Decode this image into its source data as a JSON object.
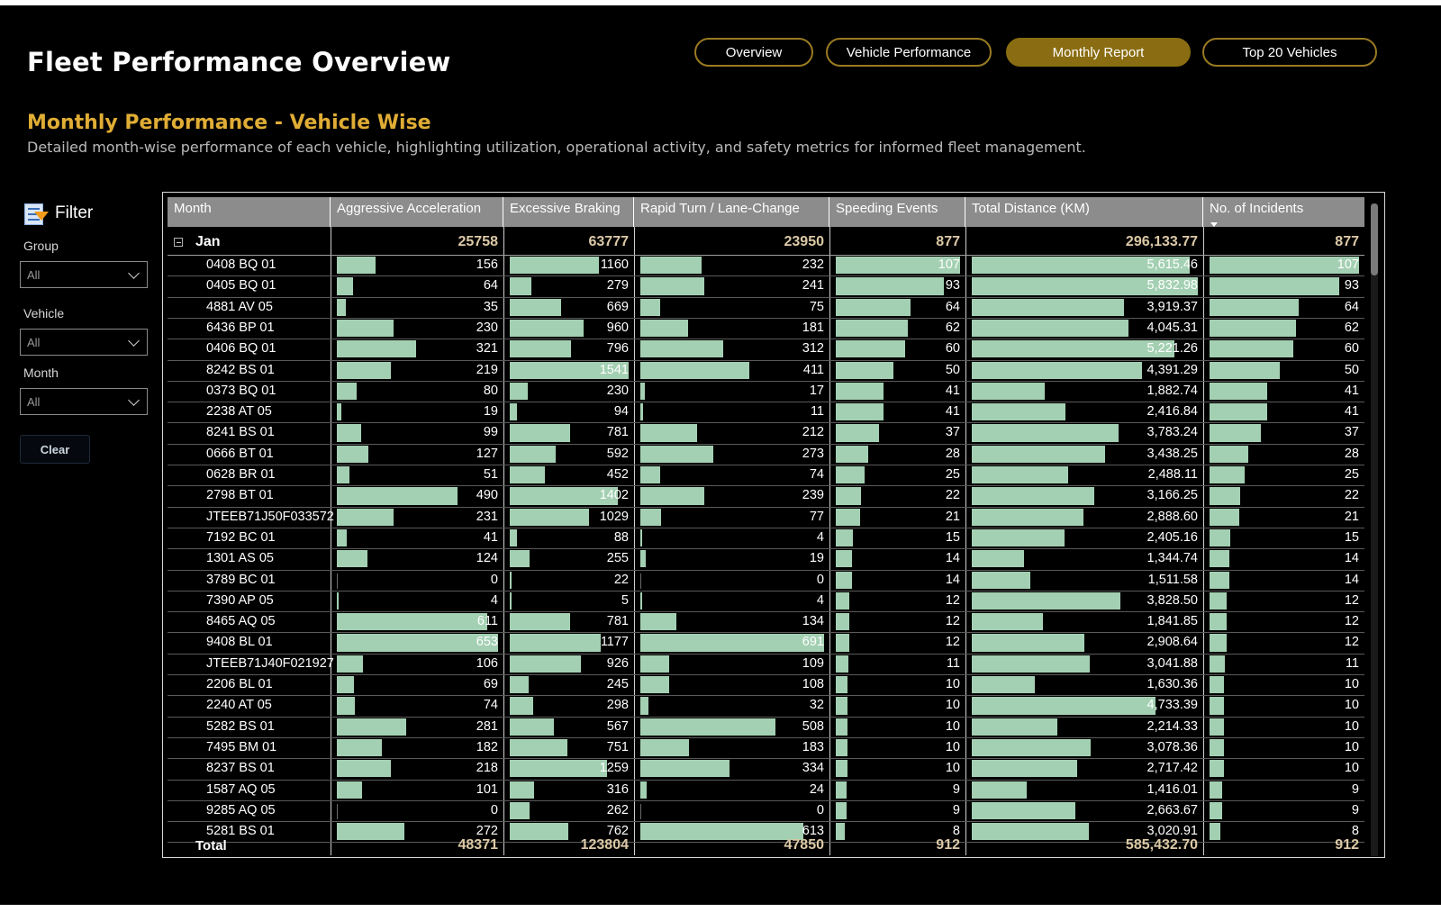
{
  "header": {
    "title": "Fleet Performance Overview",
    "nav": [
      {
        "label": "Overview",
        "active": false
      },
      {
        "label": "Vehicle Performance",
        "active": false
      },
      {
        "label": "Monthly Report",
        "active": true
      },
      {
        "label": "Top 20 Vehicles",
        "active": false
      }
    ]
  },
  "section": {
    "title": "Monthly Performance - Vehicle Wise",
    "subtitle": "Detailed month-wise performance of each vehicle, highlighting utilization, operational activity, and safety metrics for informed fleet management."
  },
  "filter": {
    "title": "Filter",
    "icon": "filter-icon",
    "fields": [
      {
        "label": "Group",
        "value": "All"
      },
      {
        "label": "Vehicle",
        "value": "All"
      },
      {
        "label": "Month",
        "value": "All"
      }
    ],
    "clear_label": "Clear"
  },
  "table": {
    "columns": [
      "Month",
      "Aggressive Acceleration",
      "Excessive Braking",
      "Rapid Turn / Lane-Change",
      "Speeding Events",
      "Total Distance (KM)",
      "No. of Incidents"
    ],
    "sorted_column": "No. of Incidents",
    "sort_direction": "descending",
    "bar_color": "#a3d0b2",
    "group": {
      "label": "Jan",
      "values": [
        "25758",
        "63777",
        "23950",
        "877",
        "296,133.77",
        "877"
      ]
    },
    "rows": [
      {
        "vehicle": "0408 BQ 01",
        "aa": 156,
        "eb": 1160,
        "rt": 232,
        "se": 107,
        "td": "5,615.46",
        "ni": 107
      },
      {
        "vehicle": "0405 BQ 01",
        "aa": 64,
        "eb": 279,
        "rt": 241,
        "se": 93,
        "td": "5,832.98",
        "ni": 93
      },
      {
        "vehicle": "4881 AV 05",
        "aa": 35,
        "eb": 669,
        "rt": 75,
        "se": 64,
        "td": "3,919.37",
        "ni": 64
      },
      {
        "vehicle": "6436 BP 01",
        "aa": 230,
        "eb": 960,
        "rt": 181,
        "se": 62,
        "td": "4,045.31",
        "ni": 62
      },
      {
        "vehicle": "0406 BQ 01",
        "aa": 321,
        "eb": 796,
        "rt": 312,
        "se": 60,
        "td": "5,221.26",
        "ni": 60
      },
      {
        "vehicle": "8242 BS 01",
        "aa": 219,
        "eb": 1541,
        "rt": 411,
        "se": 50,
        "td": "4,391.29",
        "ni": 50
      },
      {
        "vehicle": "0373 BQ 01",
        "aa": 80,
        "eb": 230,
        "rt": 17,
        "se": 41,
        "td": "1,882.74",
        "ni": 41
      },
      {
        "vehicle": "2238 AT 05",
        "aa": 19,
        "eb": 94,
        "rt": 11,
        "se": 41,
        "td": "2,416.84",
        "ni": 41
      },
      {
        "vehicle": "8241 BS 01",
        "aa": 99,
        "eb": 781,
        "rt": 212,
        "se": 37,
        "td": "3,783.24",
        "ni": 37
      },
      {
        "vehicle": "0666 BT 01",
        "aa": 127,
        "eb": 592,
        "rt": 273,
        "se": 28,
        "td": "3,438.25",
        "ni": 28
      },
      {
        "vehicle": "0628 BR 01",
        "aa": 51,
        "eb": 452,
        "rt": 74,
        "se": 25,
        "td": "2,488.11",
        "ni": 25
      },
      {
        "vehicle": "2798 BT 01",
        "aa": 490,
        "eb": 1402,
        "rt": 239,
        "se": 22,
        "td": "3,166.25",
        "ni": 22
      },
      {
        "vehicle": "JTEEB71J50F033572",
        "aa": 231,
        "eb": 1029,
        "rt": 77,
        "se": 21,
        "td": "2,888.60",
        "ni": 21
      },
      {
        "vehicle": "7192 BC 01",
        "aa": 41,
        "eb": 88,
        "rt": 4,
        "se": 15,
        "td": "2,405.16",
        "ni": 15
      },
      {
        "vehicle": "1301 AS 05",
        "aa": 124,
        "eb": 255,
        "rt": 19,
        "se": 14,
        "td": "1,344.74",
        "ni": 14
      },
      {
        "vehicle": "3789 BC 01",
        "aa": 0,
        "eb": 22,
        "rt": 0,
        "se": 14,
        "td": "1,511.58",
        "ni": 14
      },
      {
        "vehicle": "7390 AP 05",
        "aa": 4,
        "eb": 5,
        "rt": 4,
        "se": 12,
        "td": "3,828.50",
        "ni": 12
      },
      {
        "vehicle": "8465 AQ 05",
        "aa": 611,
        "eb": 781,
        "rt": 134,
        "se": 12,
        "td": "1,841.85",
        "ni": 12
      },
      {
        "vehicle": "9408 BL 01",
        "aa": 653,
        "eb": 1177,
        "rt": 691,
        "se": 12,
        "td": "2,908.64",
        "ni": 12
      },
      {
        "vehicle": "JTEEB71J40F021927",
        "aa": 106,
        "eb": 926,
        "rt": 109,
        "se": 11,
        "td": "3,041.88",
        "ni": 11
      },
      {
        "vehicle": "2206 BL 01",
        "aa": 69,
        "eb": 245,
        "rt": 108,
        "se": 10,
        "td": "1,630.36",
        "ni": 10
      },
      {
        "vehicle": "2240 AT 05",
        "aa": 74,
        "eb": 298,
        "rt": 32,
        "se": 10,
        "td": "4,733.39",
        "ni": 10
      },
      {
        "vehicle": "5282 BS 01",
        "aa": 281,
        "eb": 567,
        "rt": 508,
        "se": 10,
        "td": "2,214.33",
        "ni": 10
      },
      {
        "vehicle": "7495 BM 01",
        "aa": 182,
        "eb": 751,
        "rt": 183,
        "se": 10,
        "td": "3,078.36",
        "ni": 10
      },
      {
        "vehicle": "8237 BS 01",
        "aa": 218,
        "eb": 1259,
        "rt": 334,
        "se": 10,
        "td": "2,717.42",
        "ni": 10
      },
      {
        "vehicle": "1587 AQ 05",
        "aa": 101,
        "eb": 316,
        "rt": 24,
        "se": 9,
        "td": "1,416.01",
        "ni": 9
      },
      {
        "vehicle": "9285 AQ 05",
        "aa": 0,
        "eb": 262,
        "rt": 0,
        "se": 9,
        "td": "2,663.67",
        "ni": 9
      },
      {
        "vehicle": "5281 BS 01",
        "aa": 272,
        "eb": 762,
        "rt": 613,
        "se": 8,
        "td": "3,020.91",
        "ni": 8
      }
    ],
    "total": {
      "label": "Total",
      "values": [
        "48371",
        "123804",
        "47850",
        "912",
        "585,432.70",
        "912"
      ]
    }
  }
}
